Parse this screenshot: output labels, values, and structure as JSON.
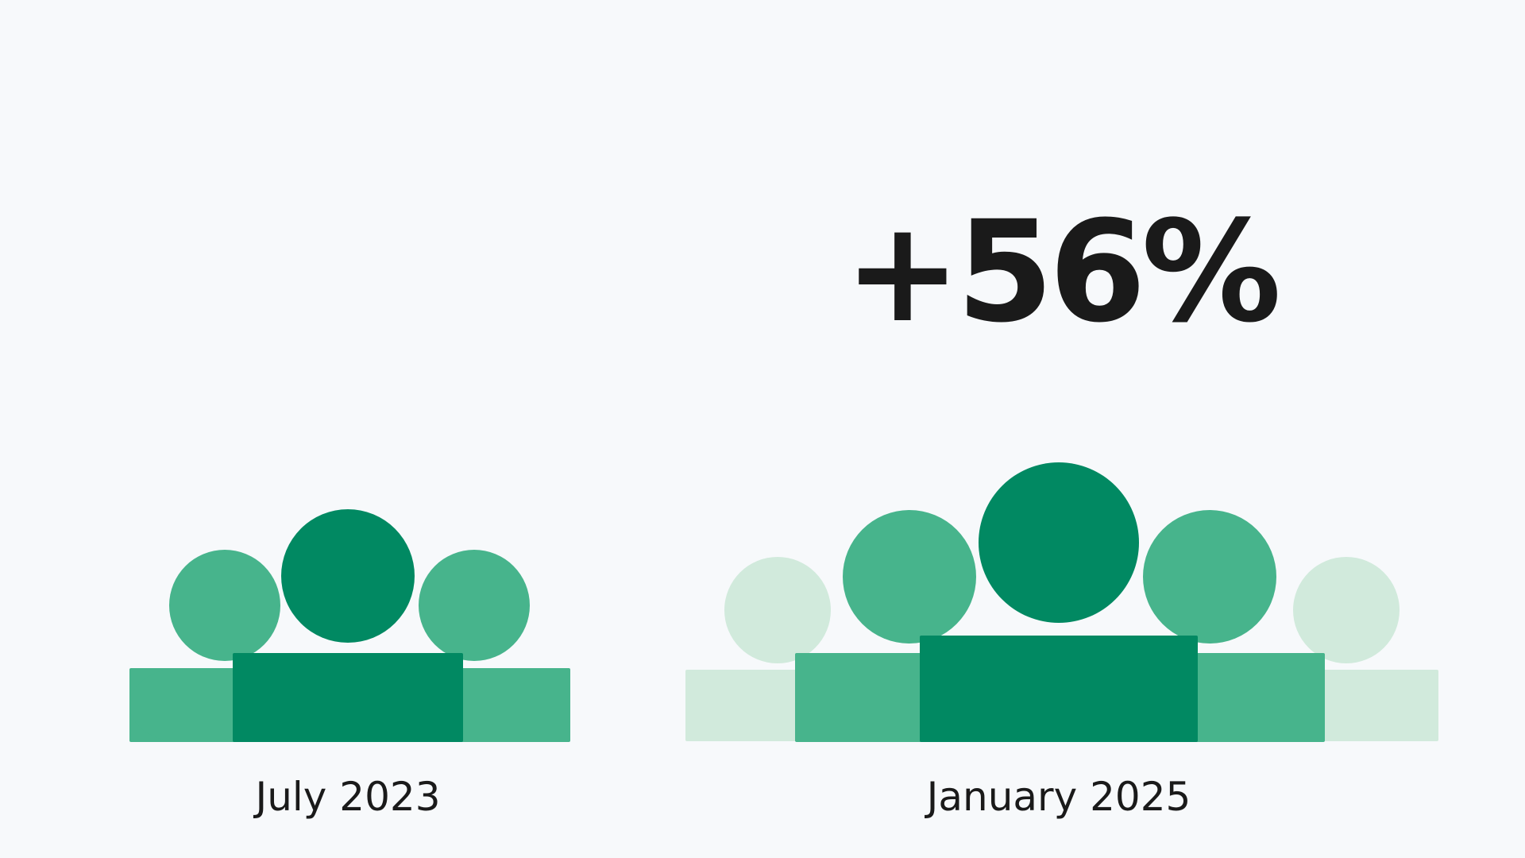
{
  "headline": {
    "value": "+56%"
  },
  "groups": [
    {
      "label": "July 2023",
      "people": 3
    },
    {
      "label": "January 2025",
      "people": 5
    }
  ],
  "colors": {
    "background": "#f7f9fb",
    "dark": "#018962",
    "medium": "#47b48c",
    "light": "#d1eadc",
    "text": "#1a1a1a"
  }
}
